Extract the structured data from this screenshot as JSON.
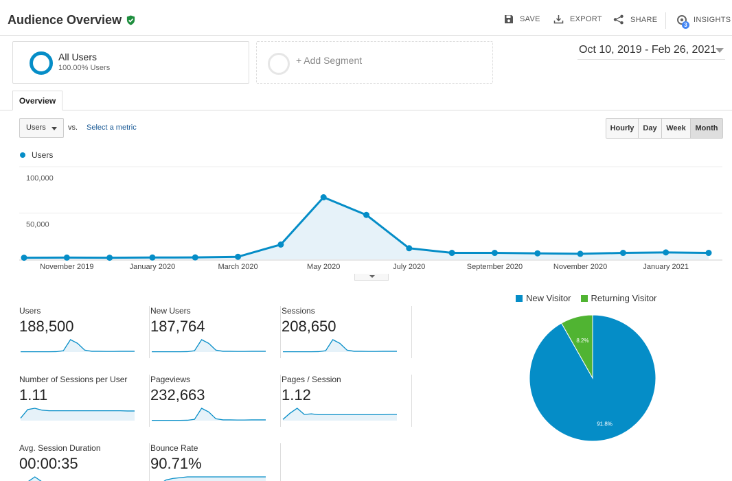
{
  "header": {
    "title": "Audience Overview",
    "save_label": "SAVE",
    "export_label": "EXPORT",
    "share_label": "SHARE",
    "insights_label": "INSIGHTS",
    "insights_badge": "3"
  },
  "segments": {
    "all_users_name": "All Users",
    "all_users_pct": "100.00% Users",
    "add_segment": "+ Add Segment"
  },
  "date_range": "Oct 10, 2019 - Feb 26, 2021",
  "tabs": {
    "overview": "Overview"
  },
  "controls": {
    "metric": "Users",
    "vs": "vs.",
    "select_metric": "Select a metric",
    "granularity": [
      "Hourly",
      "Day",
      "Week",
      "Month"
    ],
    "selected_granularity": "Month"
  },
  "colors": {
    "accent": "#058dc7",
    "new_visitor": "#058dc7",
    "returning_visitor": "#50b432"
  },
  "chart_data": [
    {
      "type": "area",
      "series": [
        {
          "name": "Users",
          "values": [
            1800,
            1900,
            1800,
            2000,
            2100,
            2800,
            16000,
            67000,
            48000,
            12000,
            7000,
            7000,
            6500,
            6000,
            7000,
            7500,
            7000
          ]
        }
      ],
      "x": [
        "Oct 2019",
        "Nov 2019",
        "Dec 2019",
        "Jan 2020",
        "Feb 2020",
        "Mar 2020",
        "Apr 2020",
        "May 2020",
        "Jun 2020",
        "Jul 2020",
        "Aug 2020",
        "Sep 2020",
        "Oct 2020",
        "Nov 2020",
        "Dec 2020",
        "Jan 2021",
        "Feb 2021"
      ],
      "x_tick_labels": [
        "November 2019",
        "January 2020",
        "March 2020",
        "May 2020",
        "July 2020",
        "September 2020",
        "November 2020",
        "January 2021"
      ],
      "y_tick_labels": [
        "100,000",
        "50,000"
      ],
      "ylim": [
        0,
        100000
      ],
      "legend": "top-left"
    },
    {
      "type": "pie",
      "categories": [
        "New Visitor",
        "Returning Visitor"
      ],
      "values": [
        91.8,
        8.2
      ],
      "labels": [
        "91.8%",
        "8.2%"
      ],
      "legend": "top"
    }
  ],
  "metrics": [
    {
      "label": "Users",
      "value": "188,500",
      "spark": [
        2,
        2,
        2,
        2,
        2,
        3,
        10,
        100,
        70,
        15,
        6,
        6,
        5,
        5,
        6,
        6,
        6
      ]
    },
    {
      "label": "New Users",
      "value": "187,764",
      "spark": [
        2,
        2,
        2,
        2,
        2,
        3,
        10,
        100,
        70,
        15,
        6,
        6,
        5,
        5,
        6,
        6,
        6
      ]
    },
    {
      "label": "Sessions",
      "value": "208,650",
      "spark": [
        2,
        2,
        2,
        2,
        2,
        3,
        10,
        100,
        70,
        15,
        6,
        6,
        5,
        5,
        6,
        6,
        6
      ]
    },
    {
      "label": "Number of Sessions per User",
      "value": "1.11",
      "spark": [
        20,
        90,
        100,
        85,
        80,
        80,
        80,
        80,
        80,
        80,
        80,
        80,
        80,
        80,
        80,
        78,
        78
      ]
    },
    {
      "label": "Pageviews",
      "value": "232,663",
      "spark": [
        2,
        2,
        2,
        2,
        2,
        3,
        10,
        100,
        70,
        15,
        6,
        6,
        5,
        5,
        6,
        6,
        6
      ]
    },
    {
      "label": "Pages / Session",
      "value": "1.12",
      "spark": [
        10,
        60,
        100,
        50,
        55,
        48,
        48,
        48,
        48,
        48,
        48,
        48,
        48,
        48,
        48,
        50,
        50
      ]
    },
    {
      "label": "Avg. Session Duration",
      "value": "00:00:35",
      "spark": [
        0,
        60,
        100,
        60,
        40,
        40,
        40,
        40,
        40,
        40,
        40,
        40,
        40,
        40,
        40,
        40,
        40
      ]
    },
    {
      "label": "Bounce Rate",
      "value": "90.71%",
      "spark": [
        20,
        30,
        60,
        70,
        75,
        80,
        80,
        80,
        80,
        80,
        80,
        80,
        80,
        80,
        80,
        80,
        80
      ]
    }
  ]
}
